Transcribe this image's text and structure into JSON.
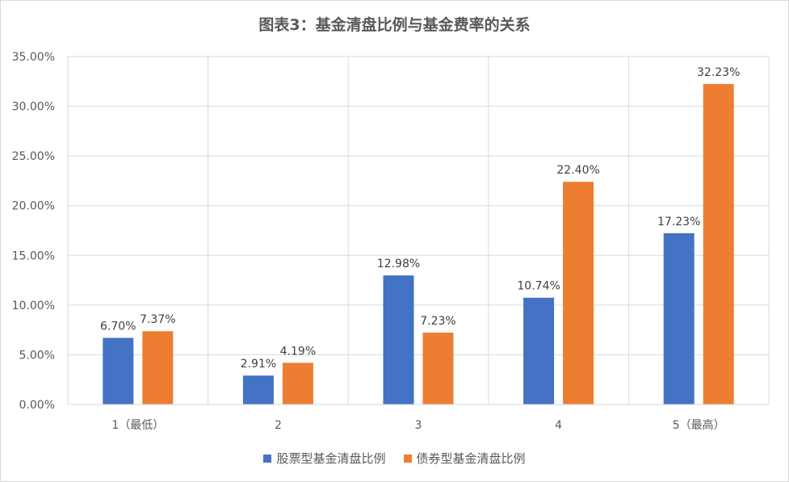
{
  "chart_data": {
    "type": "bar",
    "title": "图表3：基金清盘比例与基金费率的关系",
    "categories": [
      "1（最低）",
      "2",
      "3",
      "4",
      "5（最高）"
    ],
    "series": [
      {
        "name": "股票型基金清盘比例",
        "color": "#4472c4",
        "values": [
          6.7,
          2.91,
          12.98,
          10.74,
          17.23
        ],
        "labels": [
          "6.70%",
          "2.91%",
          "12.98%",
          "10.74%",
          "17.23%"
        ]
      },
      {
        "name": "债券型基金清盘比例",
        "color": "#ed7d31",
        "values": [
          7.37,
          4.19,
          7.23,
          22.4,
          32.23
        ],
        "labels": [
          "7.37%",
          "4.19%",
          "7.23%",
          "22.40%",
          "32.23%"
        ]
      }
    ],
    "yticks": [
      "0.00%",
      "5.00%",
      "10.00%",
      "15.00%",
      "20.00%",
      "25.00%",
      "30.00%",
      "35.00%"
    ],
    "ylim": [
      0,
      35
    ],
    "grid": true,
    "legend": "bottom"
  }
}
